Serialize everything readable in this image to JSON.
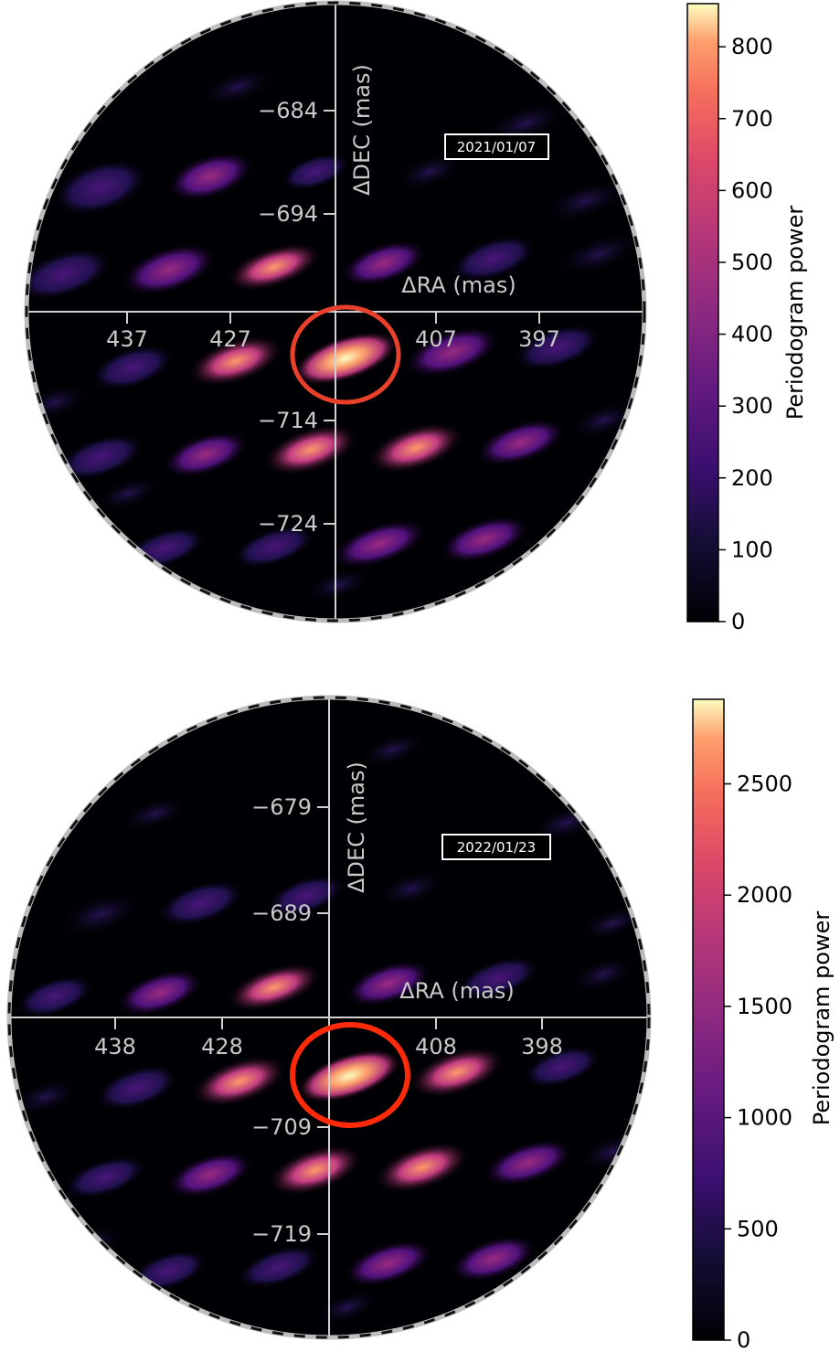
{
  "chart_data": [
    {
      "type": "heatmap",
      "date_label": "2021/01/07",
      "xlabel": "ΔRA (mas)",
      "ylabel": "ΔDEC (mas)",
      "xticks": [
        "437",
        "427",
        "407",
        "397"
      ],
      "yticks": [
        "−684",
        "−694",
        "−714",
        "−724"
      ],
      "colorbar": {
        "label": "Periodogram power",
        "ticks": [
          "0",
          "100",
          "200",
          "300",
          "400",
          "500",
          "600",
          "700",
          "800"
        ],
        "max": 860
      },
      "colormap": "magma",
      "highlight_color": "#e8402a",
      "peaks": [
        {
          "ra": 413,
          "dec": -704,
          "power": 860
        },
        {
          "ra": 419,
          "dec": -705,
          "power": 600
        },
        {
          "ra": 424,
          "dec": -694,
          "power": 620
        },
        {
          "ra": 416,
          "dec": -713,
          "power": 640
        },
        {
          "ra": 405,
          "dec": -713,
          "power": 660
        },
        {
          "ra": 413,
          "dec": -694,
          "power": 420
        },
        {
          "ra": 406,
          "dec": -724,
          "power": 460
        },
        {
          "ra": 421,
          "dec": -722,
          "power": 380
        }
      ]
    },
    {
      "type": "heatmap",
      "date_label": "2022/01/23",
      "xlabel": "ΔRA (mas)",
      "ylabel": "ΔDEC (mas)",
      "xticks": [
        "438",
        "428",
        "408",
        "398"
      ],
      "yticks": [
        "−679",
        "−689",
        "−709",
        "−719"
      ],
      "colorbar": {
        "label": "Periodogram power",
        "ticks": [
          "0",
          "500",
          "1000",
          "1500",
          "2000",
          "2500"
        ],
        "max": 2880
      },
      "colormap": "magma",
      "highlight_color": "#ff2a0a",
      "peaks": [
        {
          "ra": 416,
          "dec": -704,
          "power": 2880
        },
        {
          "ra": 421,
          "dec": -704,
          "power": 2300
        },
        {
          "ra": 425,
          "dec": -694,
          "power": 2200
        },
        {
          "ra": 419,
          "dec": -714,
          "power": 2100
        },
        {
          "ra": 408,
          "dec": -713,
          "power": 2350
        },
        {
          "ra": 412,
          "dec": -694,
          "power": 1500
        },
        {
          "ra": 404,
          "dec": -724,
          "power": 1400
        },
        {
          "ra": 410,
          "dec": -704,
          "power": 1700
        }
      ]
    }
  ]
}
